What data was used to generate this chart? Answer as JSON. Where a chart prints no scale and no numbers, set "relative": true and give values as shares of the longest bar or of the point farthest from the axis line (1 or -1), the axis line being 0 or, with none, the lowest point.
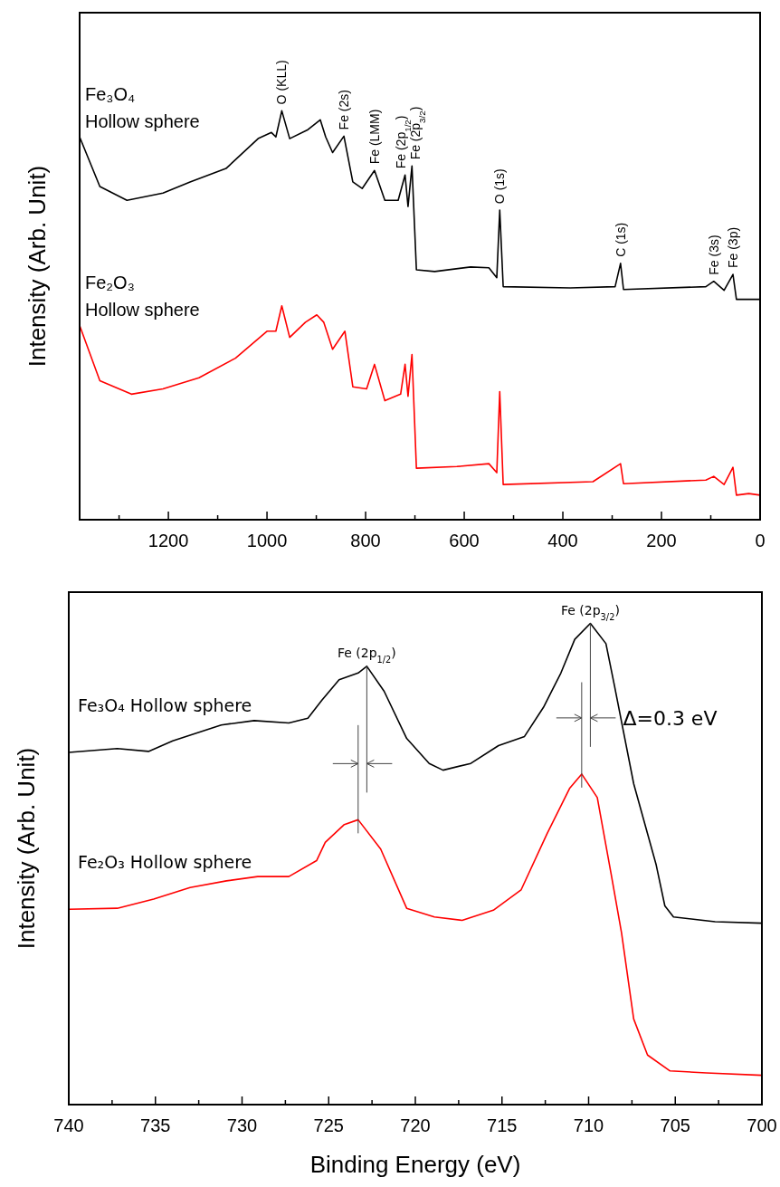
{
  "chart_data": [
    {
      "type": "line",
      "relative": true,
      "tick_labels": "x",
      "ylabel": "Intensity (Arb. Unit)",
      "xlim": [
        1380,
        0
      ],
      "xticks": [
        {
          "value": 1300,
          "label": null
        },
        1200,
        {
          "value": 1100,
          "label": null
        },
        1000,
        {
          "value": 900,
          "label": null
        },
        800,
        {
          "value": 700,
          "label": null
        },
        600,
        {
          "value": 500,
          "label": null
        },
        400,
        {
          "value": 300,
          "label": null
        },
        200,
        {
          "value": 100,
          "label": null
        },
        0
      ],
      "series": [
        {
          "name": "Fe₃O₄ Hollow sphere",
          "color": "#000000",
          "x": [
            1380,
            1339,
            1284,
            1211,
            1156,
            1083,
            1018,
            991,
            982,
            970,
            954,
            917,
            892,
            881,
            867,
            844,
            826,
            807,
            782,
            761,
            734,
            720,
            714,
            706,
            697,
            660,
            587,
            550,
            534,
            528,
            521,
            385,
            294,
            283,
            277,
            110,
            94,
            73,
            55,
            48,
            0
          ],
          "values": [
            0.936,
            0.815,
            0.781,
            0.799,
            0.826,
            0.859,
            0.932,
            0.947,
            0.936,
            1.0,
            0.932,
            0.954,
            0.978,
            0.936,
            0.898,
            0.938,
            0.826,
            0.81,
            0.854,
            0.781,
            0.781,
            0.843,
            0.766,
            0.865,
            0.611,
            0.607,
            0.618,
            0.616,
            0.592,
            0.757,
            0.57,
            0.567,
            0.57,
            0.627,
            0.563,
            0.57,
            0.583,
            0.561,
            0.6,
            0.539,
            0.539
          ]
        },
        {
          "name": "Fe₂O₃ Hollow sphere",
          "color": "#ff0000",
          "x": [
            1380,
            1339,
            1275,
            1211,
            1138,
            1064,
            1000,
            982,
            970,
            954,
            922,
            899,
            885,
            867,
            842,
            826,
            798,
            782,
            761,
            729,
            720,
            714,
            706,
            697,
            615,
            550,
            534,
            528,
            521,
            339,
            283,
            277,
            110,
            94,
            73,
            55,
            48,
            23,
            0
          ],
          "values": [
            0.475,
            0.34,
            0.307,
            0.32,
            0.347,
            0.395,
            0.461,
            0.461,
            0.523,
            0.446,
            0.483,
            0.501,
            0.483,
            0.417,
            0.461,
            0.325,
            0.32,
            0.38,
            0.291,
            0.307,
            0.38,
            0.302,
            0.404,
            0.126,
            0.13,
            0.137,
            0.115,
            0.313,
            0.086,
            0.093,
            0.137,
            0.088,
            0.097,
            0.106,
            0.086,
            0.128,
            0.06,
            0.064,
            0.06
          ]
        }
      ],
      "annotations": [
        {
          "text": "O (KLL)",
          "x": 970,
          "y": 1.0
        },
        {
          "text": "Fe (2s)",
          "x": 844,
          "y": 0.938
        },
        {
          "text": "Fe (LMM)",
          "x": 782,
          "y": 0.854
        },
        {
          "text": "Fe (2p$_{1/2}$)",
          "x": 720,
          "y": 0.843
        },
        {
          "text": "Fe (2p$_{3/2}$)",
          "x": 706,
          "y": 0.865
        },
        {
          "text": "O (1s)",
          "x": 528,
          "y": 0.757
        },
        {
          "text": "C (1s)",
          "x": 283,
          "y": 0.627
        },
        {
          "text": "Fe (3s)",
          "x": 94,
          "y": 0.583
        },
        {
          "text": "Fe (3p)",
          "x": 55,
          "y": 0.6
        }
      ]
    },
    {
      "type": "line",
      "relative": true,
      "tick_labels": "x",
      "xlabel": "Binding Energy (eV)",
      "ylabel": "Intensity (Arb. Unit)",
      "xlim": [
        740,
        700
      ],
      "xticks": [
        740,
        {
          "value": 737.5,
          "label": null
        },
        735,
        {
          "value": 732.5,
          "label": null
        },
        730,
        {
          "value": 727.5,
          "label": null
        },
        725,
        {
          "value": 722.5,
          "label": null
        },
        720,
        {
          "value": 717.5,
          "label": null
        },
        715,
        {
          "value": 712.5,
          "label": null
        },
        710,
        {
          "value": 707.5,
          "label": null
        },
        705,
        {
          "value": 702.5,
          "label": null
        },
        700
      ],
      "series": [
        {
          "name": "Fe₃O₄ Hollow sphere",
          "color": "#000000",
          "x": [
            740,
            737.2,
            735.4,
            734,
            731.2,
            729.3,
            727.3,
            726.2,
            725.4,
            724.4,
            723.3,
            722.8,
            721.8,
            720.5,
            719.2,
            718.4,
            716.8,
            715.2,
            713.7,
            712.6,
            711.6,
            710.8,
            709.9,
            709,
            708.5,
            707.4,
            706.6,
            706.1,
            705.6,
            705.1,
            702.7,
            700
          ],
          "values": [
            0.732,
            0.74,
            0.734,
            0.756,
            0.789,
            0.798,
            0.793,
            0.803,
            0.84,
            0.883,
            0.897,
            0.911,
            0.859,
            0.761,
            0.709,
            0.695,
            0.709,
            0.746,
            0.765,
            0.826,
            0.897,
            0.967,
            1.0,
            0.958,
            0.869,
            0.667,
            0.563,
            0.498,
            0.413,
            0.39,
            0.38,
            0.377
          ]
        },
        {
          "name": "Fe₂O₃ Hollow sphere",
          "color": "#ff0000",
          "x": [
            740,
            737.2,
            735.1,
            733,
            730.9,
            729.1,
            727.3,
            725.7,
            725.2,
            724.1,
            723.3,
            722,
            720.5,
            718.9,
            717.3,
            715.5,
            713.9,
            712.4,
            711.1,
            710.4,
            709.5,
            708.7,
            708.1,
            707.4,
            706.6,
            705.3,
            703.2,
            700
          ],
          "values": [
            0.406,
            0.408,
            0.427,
            0.451,
            0.465,
            0.474,
            0.474,
            0.507,
            0.545,
            0.582,
            0.592,
            0.531,
            0.408,
            0.39,
            0.383,
            0.404,
            0.446,
            0.563,
            0.657,
            0.687,
            0.638,
            0.479,
            0.357,
            0.178,
            0.103,
            0.07,
            0.066,
            0.061
          ]
        }
      ],
      "annotations": [
        {
          "text": "Fe (2p$_{1/2}$)",
          "x": 722.8,
          "y": 0.911
        },
        {
          "text": "Fe (2p$_{3/2}$)",
          "x": 709.9,
          "y": 1.0
        },
        "Δ=0.3 eV"
      ]
    }
  ]
}
